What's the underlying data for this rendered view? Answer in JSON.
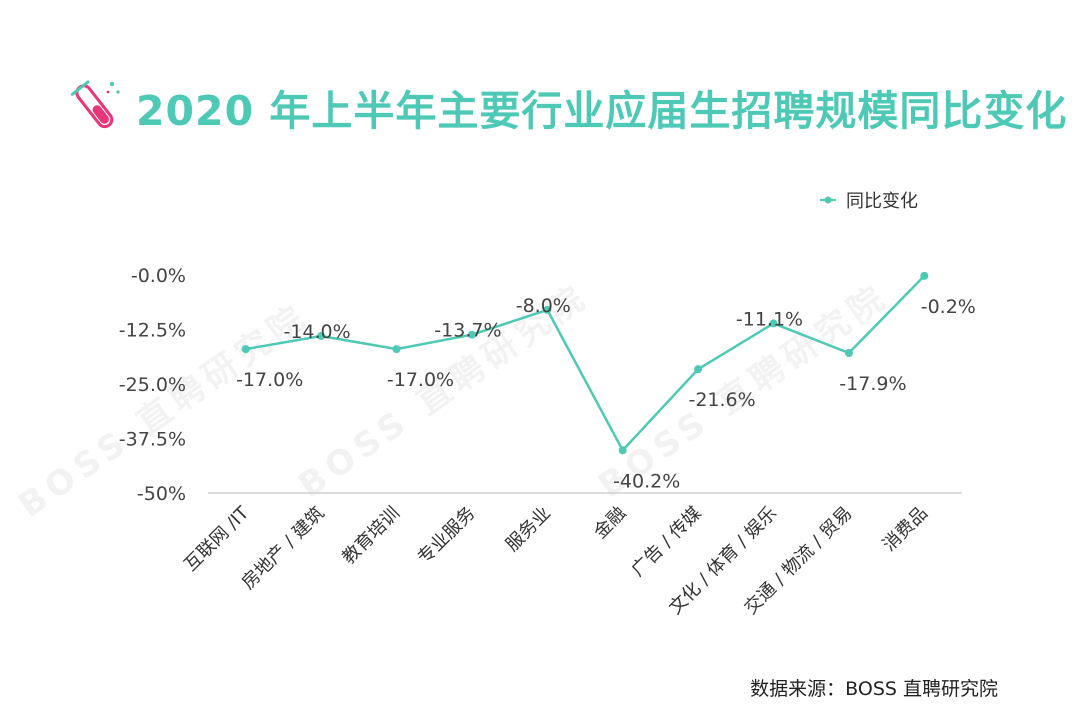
{
  "title": "2020 年上半年主要行业应届生招聘规模同比变化",
  "source": "数据来源：BOSS 直聘研究院",
  "watermark": "BOSS 直聘研究院",
  "colors": {
    "accent": "#4ec9b5",
    "icon_pink": "#e8367a",
    "icon_teal": "#4ec9b5"
  },
  "icons": {
    "title": "test-tube-icon"
  },
  "chart_data": {
    "type": "line",
    "categories": [
      "互联网 /IT",
      "房地产 / 建筑",
      "教育培训",
      "专业服务",
      "服务业",
      "金融",
      "广告 / 传媒",
      "文化 / 体育 / 娱乐",
      "交通 / 物流 / 贸易",
      "消费品"
    ],
    "series": [
      {
        "name": "同比变化",
        "values": [
          -17.0,
          -14.0,
          -17.0,
          -13.7,
          -8.0,
          -40.2,
          -21.6,
          -11.1,
          -17.9,
          -0.2
        ],
        "labels": [
          "-17.0%",
          "-14.0%",
          "-17.0%",
          "-13.7%",
          "-8.0%",
          "-40.2%",
          "-21.6%",
          "-11.1%",
          "-17.9%",
          "-0.2%"
        ],
        "color": "#4ec9b5"
      }
    ],
    "y_ticks": [
      0,
      -12.5,
      -25,
      -37.5,
      -50
    ],
    "y_tick_labels": [
      "-0.0%",
      "-12.5%",
      "-25.0%",
      "-37.5%",
      "-50%"
    ],
    "ylim": [
      -50,
      0
    ],
    "legend_position": "top-right",
    "grid": false
  }
}
